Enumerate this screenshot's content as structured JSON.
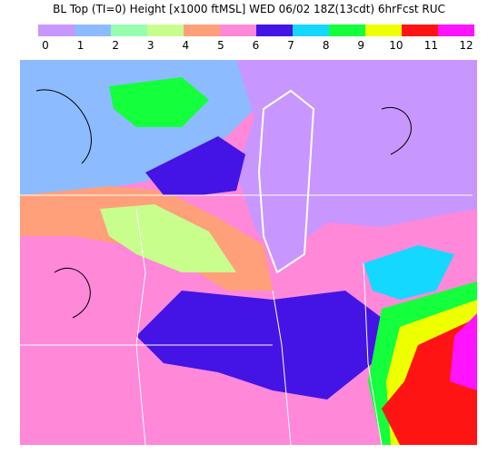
{
  "header": {
    "title": "BL Top (TI=0) Height [x1000 ftMSL]   WED 06/02 18Z(13cdt) 6hrFcst RUC"
  },
  "legend": {
    "labels": [
      "0",
      "1",
      "2",
      "3",
      "4",
      "5",
      "6",
      "7",
      "8",
      "9",
      "10",
      "11",
      "12"
    ],
    "colors": [
      "#c896ff",
      "#8cbcff",
      "#96ffb0",
      "#c8ff8c",
      "#ffa07a",
      "#ff88d8",
      "#4414e6",
      "#14d8ff",
      "#14ff3c",
      "#eeff00",
      "#ff1414",
      "#ff14ff"
    ]
  }
}
